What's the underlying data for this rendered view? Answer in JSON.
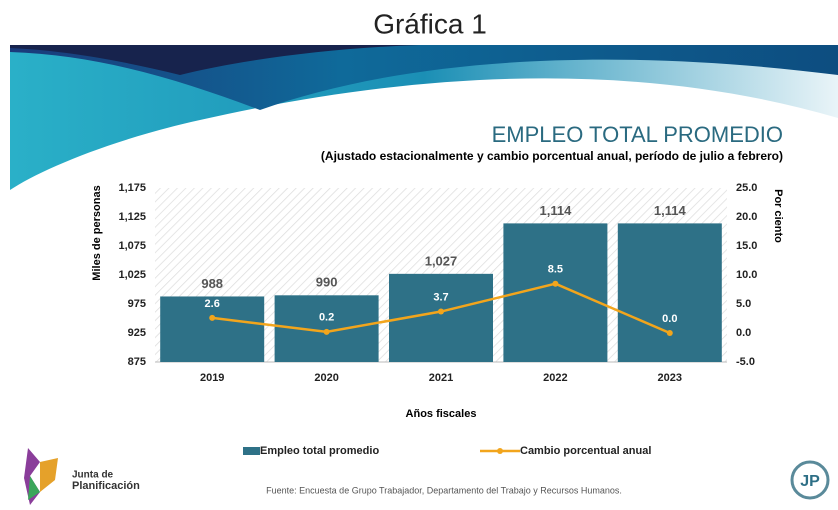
{
  "header": {
    "title": "Gráfica 1"
  },
  "chart_data": {
    "type": "bar",
    "title": "EMPLEO TOTAL PROMEDIO",
    "subtitle": "(Ajustado estacionalmente y cambio porcentual anual, período de julio a febrero)",
    "x_label": "Años fiscales",
    "y_label": "Miles de personas",
    "y2_label": "Por ciento",
    "categories": [
      "2019",
      "2020",
      "2021",
      "2022",
      "2023"
    ],
    "series": [
      {
        "name": "Empleo total promedio",
        "type": "bar",
        "color": "#2e7187",
        "values": [
          988,
          990,
          1027,
          1114,
          1114
        ],
        "value_labels": [
          "988",
          "990",
          "1,027",
          "1,114",
          "1,114"
        ]
      },
      {
        "name": "Cambio porcentual anual",
        "type": "line",
        "axis": "y2",
        "color": "#f2a51c",
        "values": [
          2.6,
          0.2,
          3.7,
          8.5,
          0.0
        ],
        "value_labels": [
          "2.6",
          "0.2",
          "3.7",
          "8.5",
          "0.0"
        ]
      }
    ],
    "ylim": [
      875,
      1175
    ],
    "yticks": [
      {
        "value": 875,
        "label": "875"
      },
      {
        "value": 925,
        "label": "925"
      },
      {
        "value": 975,
        "label": "975"
      },
      {
        "value": 1025,
        "label": "1,025"
      },
      {
        "value": 1075,
        "label": "1,075"
      },
      {
        "value": 1125,
        "label": "1,125"
      },
      {
        "value": 1175,
        "label": "1,175"
      }
    ],
    "y2lim": [
      -5,
      25
    ],
    "y2ticks": [
      {
        "value": -5,
        "label": "-5.0"
      },
      {
        "value": 0,
        "label": "0.0"
      },
      {
        "value": 5,
        "label": "5.0"
      },
      {
        "value": 10,
        "label": "10.0"
      },
      {
        "value": 15,
        "label": "15.0"
      },
      {
        "value": 20,
        "label": "20.0"
      },
      {
        "value": 25,
        "label": "25.0"
      }
    ],
    "legend": "bottom"
  },
  "footer": {
    "source": "Fuente: Encuesta de Grupo Trabajador, Departamento del Trabajo y Recursos Humanos.",
    "logo_left": [
      "Junta de",
      "Planificación"
    ],
    "logo_right": "JP"
  }
}
